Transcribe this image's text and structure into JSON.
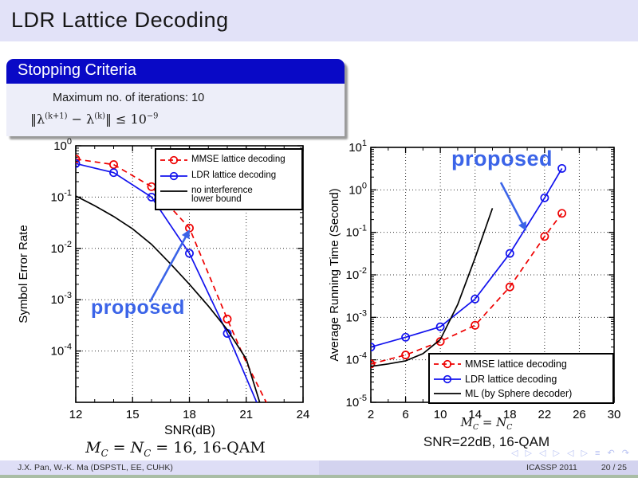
{
  "slide": {
    "title": "LDR Lattice Decoding",
    "footer": {
      "authors": "J.X. Pan,  W.-K. Ma  (DSPSTL, EE, CUHK)",
      "conference": "ICASSP 2011",
      "page": "20 / 25"
    },
    "nav_symbols": "◁ ▷ ◁ ▷ ◁ ▷  ≡  ↶ ↷"
  },
  "block": {
    "title": "Stopping Criteria",
    "line1": "Maximum no. of iterations: 10",
    "formula": {
      "p1": "‖λ",
      "e1": "(k+1)",
      "p2": " − λ",
      "e2": "(k)",
      "p3": "‖ ≤ 10",
      "e3": "−9"
    }
  },
  "left_caption": {
    "v1": "M",
    "s1": "C",
    "eq1": " = ",
    "v2": "N",
    "s2": "C",
    "tail": " = 16,  16-QAM"
  },
  "right_xlabel": {
    "v1": "M",
    "s1": "C",
    "eq": " = ",
    "v2": "N",
    "s2": "C"
  },
  "right_caption": "SNR=22dB,  16-QAM",
  "chart_data": [
    {
      "id": "ser-chart",
      "type": "line",
      "title": "",
      "xlabel": "SNR(dB)",
      "ylabel": "Symbol Error Rate",
      "x_range": [
        12,
        24
      ],
      "x_ticks": [
        12,
        15,
        18,
        21,
        24
      ],
      "y_scale": "log",
      "y_log_top_exp": 0,
      "y_log_bottom_exp": -5,
      "y_tick_exps": [
        0,
        -1,
        -2,
        -3,
        -4
      ],
      "grid": true,
      "legend_position": "top-right",
      "annotation": "proposed",
      "series": [
        {
          "name": "MMSE lattice decoding",
          "color": "#ee0000",
          "line_style": "dashed",
          "marker": "circle",
          "marker_count": 5,
          "x": [
            12,
            14,
            16,
            18,
            20,
            21,
            22,
            22.5
          ],
          "y": [
            0.55,
            0.43,
            0.16,
            0.025,
            0.00042,
            6e-05,
            1.1e-05,
            5e-06
          ]
        },
        {
          "name": "LDR lattice decoding",
          "color": "#1212ee",
          "line_style": "solid",
          "marker": "circle",
          "marker_count": 5,
          "x": [
            12,
            14,
            16,
            18,
            20,
            21,
            21.9
          ],
          "y": [
            0.45,
            0.3,
            0.1,
            0.008,
            0.00022,
            3e-05,
            5e-06
          ]
        },
        {
          "name": "no interference\nlower bound",
          "color": "#000000",
          "line_style": "solid",
          "marker": null,
          "marker_count": 0,
          "x": [
            12,
            13,
            14,
            15,
            16,
            17,
            18,
            19,
            20,
            21,
            21.9
          ],
          "y": [
            0.105,
            0.068,
            0.042,
            0.024,
            0.012,
            0.005,
            0.002,
            0.00075,
            0.00026,
            7e-05,
            6e-06
          ]
        }
      ]
    },
    {
      "id": "time-chart",
      "type": "line",
      "title": "",
      "xlabel": "M_C = N_C",
      "ylabel": "Average Running Time (Second)",
      "x_range": [
        2,
        30
      ],
      "x_ticks": [
        2,
        6,
        10,
        14,
        18,
        22,
        26,
        30
      ],
      "y_scale": "log",
      "y_log_top_exp": 1,
      "y_log_bottom_exp": -5,
      "y_tick_exps": [
        1,
        0,
        -1,
        -2,
        -3,
        -4,
        -5
      ],
      "grid": true,
      "legend_position": "bottom-right",
      "annotation": "proposed",
      "series": [
        {
          "name": "MMSE lattice decoding",
          "color": "#ee0000",
          "line_style": "dashed",
          "marker": "circle",
          "marker_count": 7,
          "x": [
            2,
            6,
            10,
            14,
            18,
            22,
            24
          ],
          "y": [
            8e-05,
            0.00013,
            0.00027,
            0.00065,
            0.0052,
            0.08,
            0.28
          ]
        },
        {
          "name": "LDR lattice decoding",
          "color": "#1212ee",
          "line_style": "solid",
          "marker": "circle",
          "marker_count": 7,
          "x": [
            2,
            6,
            10,
            14,
            18,
            22,
            24
          ],
          "y": [
            0.0002,
            0.00034,
            0.0006,
            0.0027,
            0.032,
            0.65,
            3.2
          ]
        },
        {
          "name": "ML (by Sphere decoder)",
          "color": "#000000",
          "line_style": "solid",
          "marker": null,
          "marker_count": 0,
          "x": [
            2,
            4,
            6,
            8,
            10,
            12,
            14,
            16
          ],
          "y": [
            7e-05,
            8e-05,
            9.5e-05,
            0.00014,
            0.0003,
            0.002,
            0.025,
            0.37
          ]
        }
      ]
    }
  ]
}
